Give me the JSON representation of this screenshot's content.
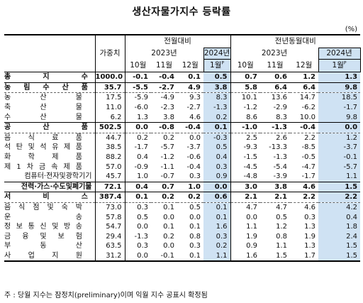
{
  "title": "생산자물가지수 등락률",
  "unit": "(%)",
  "header": {
    "weight": "가중치",
    "group_mom": "전월대비",
    "group_yoy": "전년동월대비",
    "year_2023": "2023년",
    "year_2024": "2024년",
    "months": [
      "10월",
      "11월",
      "12월",
      "1월"
    ],
    "superscript_p": "P"
  },
  "rows": [
    {
      "label": "총지수",
      "weight": "1000.0",
      "mom": [
        "-0.1",
        "-0.4",
        "0.1",
        "0.5"
      ],
      "yoy": [
        "0.7",
        "0.6",
        "1.2",
        "1.3"
      ]
    },
    {
      "label": "농림수산품",
      "weight": "35.7",
      "mom": [
        "-5.5",
        "-2.7",
        "4.9",
        "3.8"
      ],
      "yoy": [
        "5.8",
        "6.4",
        "6.4",
        "9.8"
      ]
    },
    {
      "label": "농산물",
      "weight": "17.5",
      "mom": [
        "-5.9",
        "-4.9",
        "9.3",
        "8.3"
      ],
      "yoy": [
        "10.1",
        "13.6",
        "14.7",
        "18.5"
      ]
    },
    {
      "label": "축산물",
      "weight": "11.0",
      "mom": [
        "-6.0",
        "-2.3",
        "-2.7",
        "-1.3"
      ],
      "yoy": [
        "-1.2",
        "-2.9",
        "-6.2",
        "-1.7"
      ]
    },
    {
      "label": "수산물",
      "weight": "6.2",
      "mom": [
        "1.3",
        "3.8",
        "4.6",
        "0.2"
      ],
      "yoy": [
        "8.6",
        "8.3",
        "10.0",
        "9.8"
      ]
    },
    {
      "label": "공산품",
      "weight": "502.5",
      "mom": [
        "0.0",
        "-0.8",
        "-0.4",
        "0.1"
      ],
      "yoy": [
        "-1.0",
        "-1.3",
        "-0.4",
        "0.0"
      ]
    },
    {
      "label": "음식료품",
      "weight": "44.7",
      "mom": [
        "0.2",
        "0.2",
        "0.0",
        "-0.3"
      ],
      "yoy": [
        "2.5",
        "2.6",
        "2.2",
        "1.2"
      ]
    },
    {
      "label": "석탄및석유제품",
      "weight": "38.5",
      "mom": [
        "-1.7",
        "-5.7",
        "-3.7",
        "0.5"
      ],
      "yoy": [
        "-9.3",
        "-13.3",
        "-8.5",
        "-3.7"
      ]
    },
    {
      "label": "화학제품",
      "weight": "88.2",
      "mom": [
        "0.4",
        "-1.2",
        "-0.6",
        "0.4"
      ],
      "yoy": [
        "-1.5",
        "-1.3",
        "-0.5",
        "-0.1"
      ]
    },
    {
      "label": "제1차금속제품",
      "weight": "57.0",
      "mom": [
        "-0.9",
        "-1.1",
        "-0.4",
        "0.3"
      ],
      "yoy": [
        "-4.5",
        "-5.4",
        "-4.7",
        "-5.7"
      ]
    },
    {
      "label": "컴퓨터·전자및광학기기",
      "weight": "45.7",
      "mom": [
        "1.0",
        "-0.7",
        "0.3",
        "0.9"
      ],
      "yoy": [
        "-4.8",
        "-3.9",
        "-1.7",
        "1.1"
      ]
    },
    {
      "label": "전력·가스·수도및폐기물",
      "weight": "72.1",
      "mom": [
        "0.4",
        "0.7",
        "1.0",
        "0.0"
      ],
      "yoy": [
        "3.0",
        "3.8",
        "4.6",
        "1.5"
      ]
    },
    {
      "label": "서비스",
      "weight": "387.4",
      "mom": [
        "0.1",
        "0.2",
        "0.2",
        "0.6"
      ],
      "yoy": [
        "2.1",
        "2.1",
        "2.2",
        "2.2"
      ]
    },
    {
      "label": "음식점및숙박",
      "weight": "73.0",
      "mom": [
        "0.3",
        "0.1",
        "0.5",
        "0.1"
      ],
      "yoy": [
        "4.7",
        "4.7",
        "4.6",
        "4.2"
      ]
    },
    {
      "label": "운송",
      "weight": "57.8",
      "mom": [
        "0.5",
        "0.0",
        "0.0",
        "0.1"
      ],
      "yoy": [
        "0.0",
        "0.5",
        "0.3",
        "0.4"
      ]
    },
    {
      "label": "정보통신및방송",
      "weight": "54.7",
      "mom": [
        "0.0",
        "0.1",
        "0.1",
        "1.6"
      ],
      "yoy": [
        "1.1",
        "1.2",
        "1.3",
        "1.8"
      ]
    },
    {
      "label": "금융및보험",
      "weight": "29.4",
      "mom": [
        "-1.3",
        "0.2",
        "0.8",
        "0.3"
      ],
      "yoy": [
        "1.9",
        "0.8",
        "1.9",
        "2.4"
      ]
    },
    {
      "label": "부동산",
      "weight": "63.5",
      "mom": [
        "0.3",
        "0.0",
        "0.3",
        "0.2"
      ],
      "yoy": [
        "0.9",
        "1.1",
        "1.3",
        "1.5"
      ]
    },
    {
      "label": "사업지원",
      "weight": "31.2",
      "mom": [
        "0.0",
        "-0.1",
        "0.1",
        "1.1"
      ],
      "yoy": [
        "1.6",
        "1.5",
        "1.7",
        "1.5"
      ]
    }
  ],
  "note": "주 : 당월 지수는 잠정치(preliminary)이며 익월 지수 공표시 확정됨"
}
